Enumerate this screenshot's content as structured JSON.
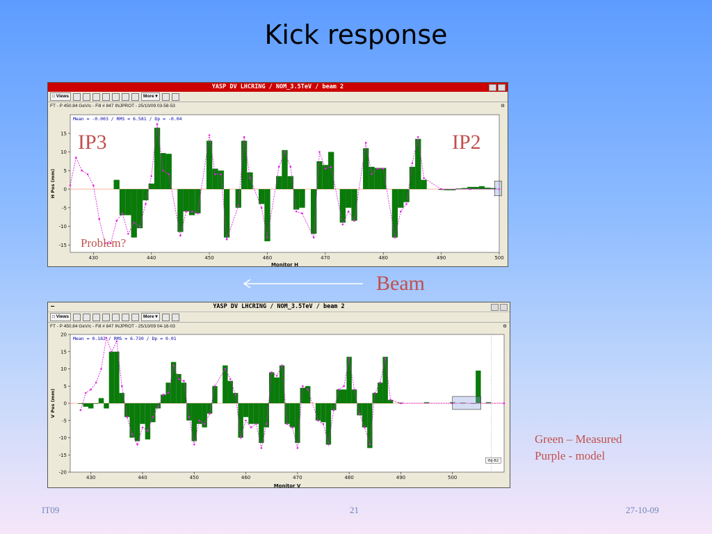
{
  "slide": {
    "title": "Kick response",
    "beam_label": "Beam",
    "legend_line1": "Green – Measured",
    "legend_line2": "Purple - model",
    "footer_left": "IT09",
    "footer_center": "21",
    "footer_right": "27-10-09"
  },
  "colors": {
    "measured": "#0a7a0a",
    "model": "#e020e0",
    "annotation": "#c0504d"
  },
  "toolbar": {
    "views_label": "Views",
    "more_label": "More"
  },
  "top_window": {
    "title": "YASP DV LHCRING / NOM_3.5TeV / beam 2",
    "info": "FT - P 450.84 GeV/c - Fill # 847 INJPROT - 25/10/09 03-58-53",
    "stats": "Mean =  -0.003 / RMS =   6.581 / Dp =  -0.04",
    "ylabel": "H Pos (mm)",
    "xlabel": "Monitor H",
    "ann_ip3": "IP3",
    "ann_ip2": "IP2",
    "ann_problem": "Problem?"
  },
  "bottom_window": {
    "title": "YASP DV LHCRING / NOM_3.5TeV / beam 2",
    "info": "FT - P 450.84 GeV/c - Fill # 847 INJPROT - 25/10/09 04-16-03",
    "stats": "Mean =   0.182 / RMS =   6.730 / Dp =   0.01",
    "ylabel": "V Pos (mm)",
    "xlabel": "Monitor V",
    "inj_tag": "INJ-B2"
  },
  "chart_data": [
    {
      "type": "bar",
      "title": "YASP DV LHCRING / NOM_3.5TeV / beam 2",
      "xlabel": "Monitor H",
      "ylabel": "H Pos (mm)",
      "xlim": [
        426,
        500
      ],
      "ylim": [
        -17,
        20
      ],
      "xticks": [
        430,
        440,
        450,
        460,
        470,
        480,
        490,
        500
      ],
      "yticks": [
        -15,
        -10,
        -5,
        0,
        5,
        10,
        15
      ],
      "series": [
        {
          "name": "Measured",
          "x": [
            434,
            435,
            436,
            437,
            438,
            439,
            440,
            441,
            442,
            443,
            445,
            446,
            447,
            448,
            450,
            451,
            452,
            453,
            455,
            456,
            457,
            459,
            460,
            462,
            463,
            464,
            465,
            466,
            468,
            469,
            470,
            471,
            473,
            474,
            475,
            477,
            478,
            479,
            480,
            482,
            483,
            484,
            485,
            486,
            487,
            490,
            491,
            492,
            493,
            494,
            495,
            496,
            497,
            498,
            499
          ],
          "values": [
            2.5,
            -7,
            -7,
            -13,
            -10.5,
            -3,
            1.5,
            16.5,
            9.7,
            9.5,
            -11.5,
            -6,
            -7,
            -6.5,
            13,
            5.5,
            5,
            -13,
            -5,
            13,
            4.5,
            -4,
            -14,
            3.5,
            10.5,
            3.5,
            -5.5,
            -5,
            -12,
            7.5,
            6.5,
            10,
            -9,
            -5,
            -8.5,
            11,
            6,
            5.7,
            5.7,
            -13,
            -5,
            -3.5,
            6,
            13.5,
            2.5,
            -0.2,
            -0.3,
            -0.3,
            0.2,
            0.3,
            0.6,
            0.6,
            0.8,
            0.4,
            0.3
          ]
        },
        {
          "name": "Model",
          "x": [
            426,
            427,
            428,
            429,
            430,
            431,
            432,
            433,
            434,
            435,
            436,
            437,
            438,
            439,
            440,
            441,
            442,
            443,
            445,
            446,
            447,
            448,
            450,
            451,
            452,
            453,
            455,
            456,
            457,
            459,
            460,
            462,
            463,
            464,
            465,
            466,
            468,
            469,
            470,
            471,
            473,
            474,
            475,
            477,
            478,
            479,
            480,
            482,
            483,
            484,
            485,
            486,
            487,
            490,
            495,
            500
          ],
          "values": [
            1,
            8.5,
            5,
            4,
            1,
            -8,
            -14.5,
            -14.5,
            -8.5,
            -6.5,
            -12,
            -9,
            -10,
            -4,
            3.5,
            17.5,
            5,
            4,
            -12.5,
            -6,
            -6,
            -6.5,
            14.5,
            4,
            4,
            -13.5,
            -4.5,
            14,
            3,
            -5,
            -13,
            6,
            10,
            6,
            -6,
            -6.5,
            -13,
            10,
            5.5,
            6,
            -9.5,
            -6,
            -8.5,
            12.5,
            4,
            5.5,
            5.5,
            -13,
            -6,
            -4,
            7,
            14,
            3,
            0,
            0,
            0
          ]
        }
      ]
    },
    {
      "type": "bar",
      "title": "YASP DV LHCRING / NOM_3.5TeV / beam 2",
      "xlabel": "Monitor V",
      "ylabel": "V Pos (mm)",
      "xlim": [
        426,
        510
      ],
      "ylim": [
        -20,
        20
      ],
      "xticks": [
        430,
        440,
        450,
        460,
        470,
        480,
        490,
        500
      ],
      "yticks": [
        -20,
        -15,
        -10,
        -5,
        0,
        5,
        10,
        15,
        20
      ],
      "series": [
        {
          "name": "Measured",
          "x": [
            428,
            429,
            430,
            431,
            432,
            433,
            434,
            435,
            436,
            437,
            438,
            439,
            440,
            441,
            442,
            443,
            444,
            445,
            446,
            447,
            448,
            449,
            450,
            451,
            452,
            453,
            454,
            456,
            457,
            458,
            459,
            460,
            461,
            462,
            463,
            464,
            465,
            466,
            467,
            468,
            469,
            470,
            471,
            472,
            474,
            475,
            476,
            477,
            478,
            479,
            480,
            481,
            482,
            483,
            484,
            485,
            486,
            487,
            488,
            490,
            495,
            500,
            502,
            504,
            505,
            507
          ],
          "values": [
            0,
            -1,
            -1.5,
            0,
            1.5,
            -1.5,
            15,
            15,
            3,
            -4,
            -10,
            -11,
            -6,
            -10.5,
            -5.5,
            -1.5,
            2.5,
            6,
            12,
            8.5,
            6,
            -5,
            -11,
            -6,
            -7,
            -3,
            5,
            11,
            6.5,
            3,
            -10,
            -4,
            -6,
            -6,
            -11.5,
            -7,
            9,
            7.5,
            11,
            -6,
            -7,
            -11.5,
            4.5,
            5,
            -5,
            -5.5,
            -12,
            -2,
            4,
            4,
            13.5,
            4,
            -3.5,
            -7,
            -13,
            3,
            6,
            13.5,
            1,
            0.2,
            0.3,
            0.3,
            0.2,
            0,
            9.5,
            0.3
          ]
        },
        {
          "name": "Model",
          "x": [
            428,
            429,
            430,
            431,
            432,
            433,
            434,
            435,
            436,
            437,
            438,
            439,
            440,
            441,
            442,
            443,
            444,
            445,
            446,
            447,
            448,
            449,
            450,
            451,
            452,
            453,
            454,
            456,
            457,
            458,
            459,
            460,
            461,
            462,
            463,
            464,
            465,
            466,
            467,
            468,
            469,
            470,
            471,
            472,
            474,
            475,
            476,
            477,
            478,
            479,
            480,
            481,
            482,
            483,
            484,
            485,
            486,
            487,
            488,
            490,
            500,
            510
          ],
          "values": [
            -2,
            3,
            4,
            6,
            10,
            19,
            15,
            18,
            5,
            -4,
            -9,
            -12,
            -7,
            -8,
            -4,
            -1,
            2.5,
            3,
            11,
            7,
            6.5,
            -4,
            -12,
            -5,
            -6,
            -3,
            5,
            10,
            7,
            2.5,
            -10,
            -5,
            -7,
            -6,
            -13,
            -6,
            9,
            8,
            11,
            -6,
            -7,
            -13,
            5,
            4,
            -5,
            -6,
            -12,
            -2,
            4,
            5,
            13,
            4,
            -3,
            -7,
            -12,
            3,
            6,
            13,
            1,
            0,
            0,
            0
          ]
        }
      ]
    }
  ]
}
